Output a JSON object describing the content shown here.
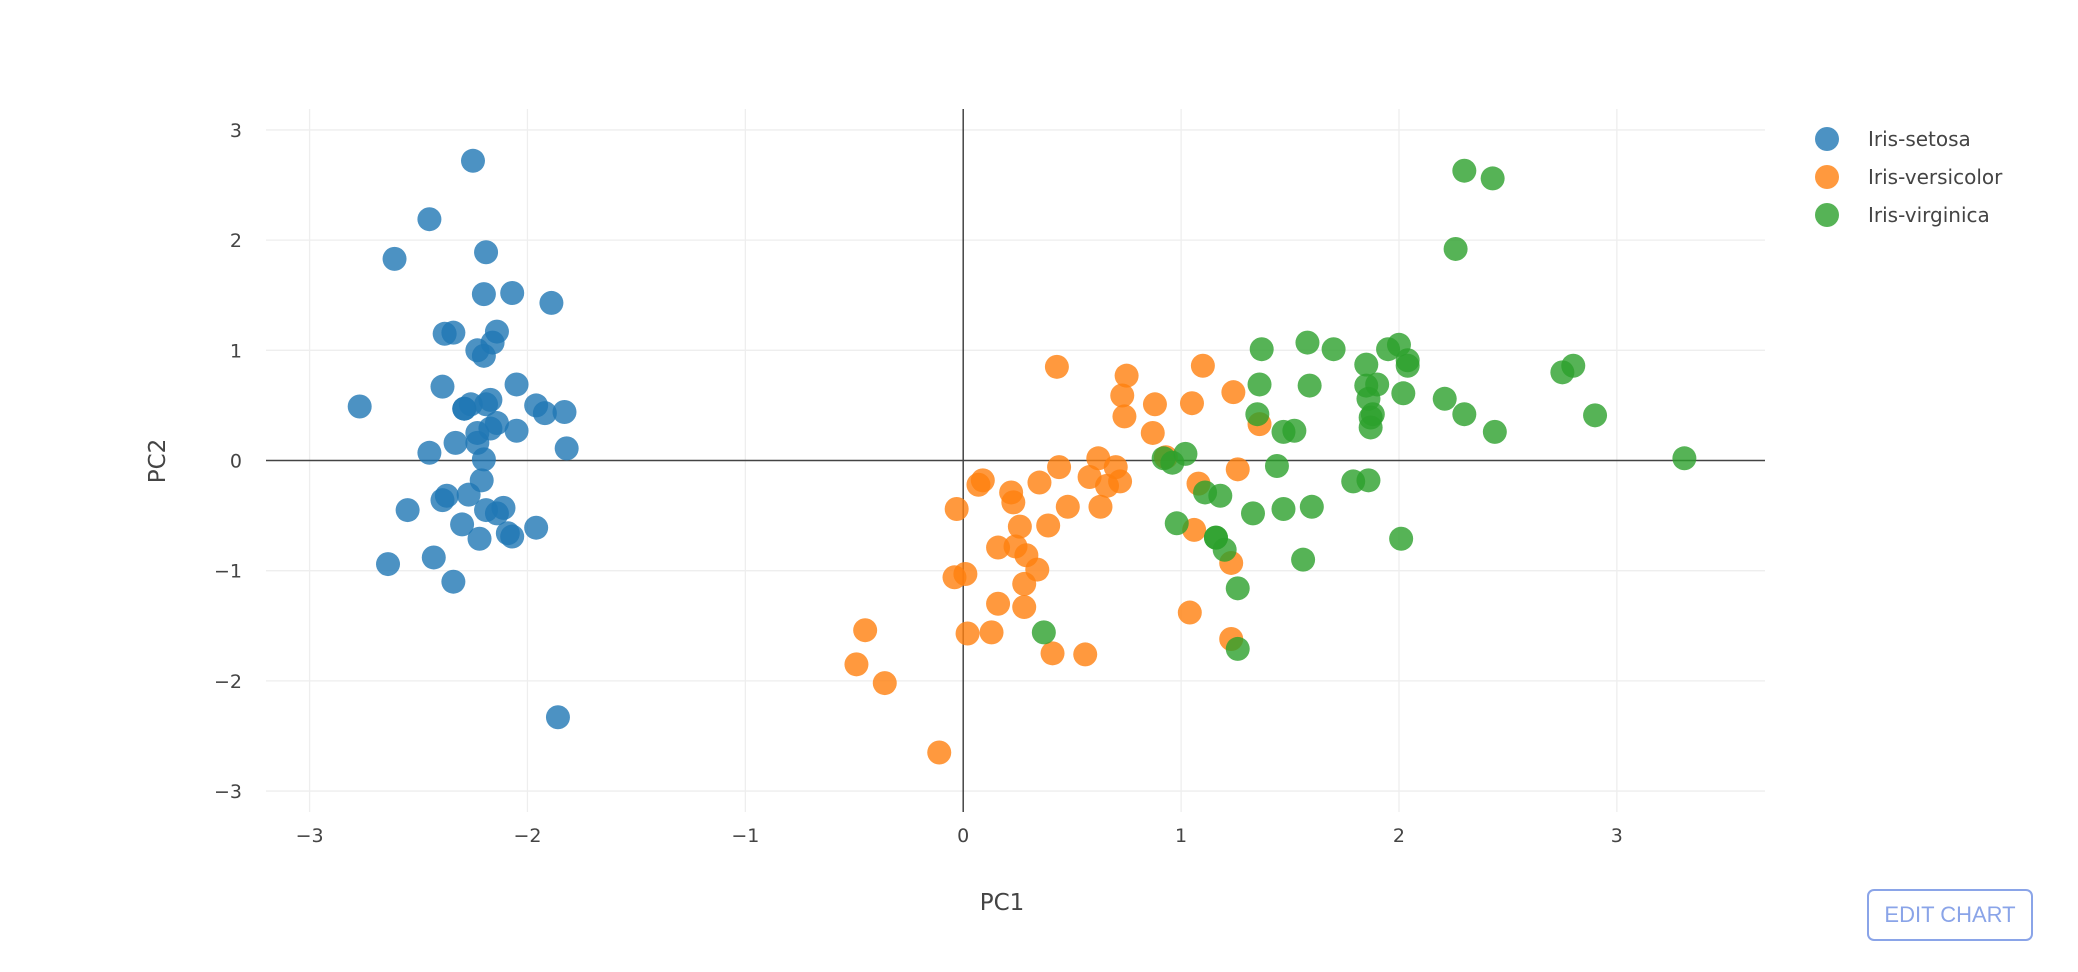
{
  "chart_data": {
    "type": "scatter",
    "title": "",
    "xlabel": "PC1",
    "ylabel": "PC2",
    "xlim": [
      -3.2,
      3.68
    ],
    "ylim": [
      -3.19,
      3.19
    ],
    "xticks": [
      -3,
      -2,
      -1,
      0,
      1,
      2,
      3
    ],
    "yticks": [
      -3,
      -2,
      -1,
      0,
      1,
      2,
      3
    ],
    "xtick_labels": [
      "−3",
      "−2",
      "−1",
      "0",
      "1",
      "2",
      "3"
    ],
    "ytick_labels": [
      "−3",
      "−2",
      "−1",
      "0",
      "1",
      "2",
      "3"
    ],
    "grid": true,
    "legend_position": "top-right",
    "series": [
      {
        "name": "Iris-setosa",
        "color": "#1f77b4",
        "points": [
          [
            -2.26,
            0.51
          ],
          [
            -2.09,
            -0.66
          ],
          [
            -2.37,
            -0.32
          ],
          [
            -2.3,
            -0.58
          ],
          [
            -2.39,
            0.67
          ],
          [
            -2.07,
            1.52
          ],
          [
            -2.45,
            0.07
          ],
          [
            -2.23,
            0.25
          ],
          [
            -2.34,
            -1.1
          ],
          [
            -2.19,
            -0.45
          ],
          [
            -2.16,
            1.07
          ],
          [
            -2.33,
            0.16
          ],
          [
            -2.22,
            -0.71
          ],
          [
            -2.64,
            -0.94
          ],
          [
            -2.19,
            1.89
          ],
          [
            -2.25,
            2.72
          ],
          [
            -2.2,
            1.51
          ],
          [
            -2.19,
            0.51
          ],
          [
            -1.89,
            1.43
          ],
          [
            -2.34,
            1.16
          ],
          [
            -1.92,
            0.43
          ],
          [
            -2.2,
            0.95
          ],
          [
            -2.77,
            0.49
          ],
          [
            -1.82,
            0.11
          ],
          [
            -2.23,
            0.16
          ],
          [
            -1.96,
            -0.61
          ],
          [
            -2.05,
            0.27
          ],
          [
            -2.17,
            0.55
          ],
          [
            -2.14,
            0.34
          ],
          [
            -2.27,
            -0.31
          ],
          [
            -2.14,
            -0.48
          ],
          [
            -1.83,
            0.44
          ],
          [
            -2.61,
            1.83
          ],
          [
            -2.45,
            2.19
          ],
          [
            -2.11,
            -0.43
          ],
          [
            -2.21,
            -0.18
          ],
          [
            -2.05,
            0.69
          ],
          [
            -2.29,
            0.47
          ],
          [
            -2.43,
            -0.88
          ],
          [
            -2.17,
            0.29
          ],
          [
            -2.29,
            0.47
          ],
          [
            -1.86,
            -2.33
          ],
          [
            -2.55,
            -0.45
          ],
          [
            -1.96,
            0.5
          ],
          [
            -2.14,
            1.17
          ],
          [
            -2.07,
            -0.69
          ],
          [
            -2.38,
            1.15
          ],
          [
            -2.39,
            -0.36
          ],
          [
            -2.23,
            1.0
          ],
          [
            -2.2,
            0.01
          ]
        ]
      },
      {
        "name": "Iris-versicolor",
        "color": "#ff7f0e",
        "points": [
          [
            1.1,
            0.86
          ],
          [
            0.73,
            0.59
          ],
          [
            1.24,
            0.62
          ],
          [
            0.41,
            -1.75
          ],
          [
            1.08,
            -0.21
          ],
          [
            0.39,
            -0.59
          ],
          [
            0.75,
            0.77
          ],
          [
            -0.49,
            -1.85
          ],
          [
            0.93,
            0.03
          ],
          [
            0.01,
            -1.03
          ],
          [
            -0.11,
            -2.65
          ],
          [
            0.44,
            -0.06
          ],
          [
            0.56,
            -1.76
          ],
          [
            0.72,
            -0.19
          ],
          [
            -0.03,
            -0.44
          ],
          [
            0.88,
            0.51
          ],
          [
            0.35,
            -0.2
          ],
          [
            0.16,
            -0.79
          ],
          [
            1.23,
            -1.62
          ],
          [
            0.16,
            -1.3
          ],
          [
            0.74,
            0.4
          ],
          [
            0.48,
            -0.42
          ],
          [
            1.23,
            -0.93
          ],
          [
            0.63,
            -0.42
          ],
          [
            0.7,
            -0.06
          ],
          [
            0.87,
            0.25
          ],
          [
            1.26,
            -0.08
          ],
          [
            1.36,
            0.33
          ],
          [
            0.66,
            -0.23
          ],
          [
            -0.04,
            -1.06
          ],
          [
            0.13,
            -1.56
          ],
          [
            0.02,
            -1.57
          ],
          [
            0.24,
            -0.78
          ],
          [
            1.06,
            -0.63
          ],
          [
            0.22,
            -0.29
          ],
          [
            0.43,
            0.85
          ],
          [
            1.05,
            0.52
          ],
          [
            1.04,
            -1.38
          ],
          [
            0.07,
            -0.22
          ],
          [
            0.28,
            -1.33
          ],
          [
            0.28,
            -1.12
          ],
          [
            0.62,
            0.02
          ],
          [
            0.34,
            -0.99
          ],
          [
            -0.36,
            -2.02
          ],
          [
            0.29,
            -0.86
          ],
          [
            0.09,
            -0.18
          ],
          [
            0.23,
            -0.38
          ],
          [
            0.58,
            -0.15
          ],
          [
            -0.45,
            -1.54
          ],
          [
            0.26,
            -0.6
          ]
        ]
      },
      {
        "name": "Iris-virginica",
        "color": "#2ca02c",
        "points": [
          [
            1.85,
            0.87
          ],
          [
            1.16,
            -0.7
          ],
          [
            2.21,
            0.56
          ],
          [
            1.44,
            -0.05
          ],
          [
            1.87,
            0.3
          ],
          [
            2.75,
            0.8
          ],
          [
            0.37,
            -1.56
          ],
          [
            2.3,
            0.42
          ],
          [
            2.01,
            -0.71
          ],
          [
            2.26,
            1.92
          ],
          [
            1.36,
            0.69
          ],
          [
            1.6,
            -0.42
          ],
          [
            1.88,
            0.42
          ],
          [
            1.26,
            -1.16
          ],
          [
            1.47,
            -0.44
          ],
          [
            1.59,
            0.68
          ],
          [
            1.47,
            0.26
          ],
          [
            2.43,
            2.56
          ],
          [
            3.31,
            0.02
          ],
          [
            1.26,
            -1.71
          ],
          [
            2.04,
            0.91
          ],
          [
            0.98,
            -0.57
          ],
          [
            2.9,
            0.41
          ],
          [
            1.33,
            -0.48
          ],
          [
            1.7,
            1.01
          ],
          [
            1.95,
            1.01
          ],
          [
            1.18,
            -0.32
          ],
          [
            1.02,
            0.06
          ],
          [
            1.79,
            -0.19
          ],
          [
            1.86,
            0.56
          ],
          [
            2.44,
            0.26
          ],
          [
            2.3,
            2.63
          ],
          [
            1.86,
            -0.18
          ],
          [
            1.11,
            -0.29
          ],
          [
            1.2,
            -0.81
          ],
          [
            2.8,
            0.86
          ],
          [
            1.58,
            1.07
          ],
          [
            1.35,
            0.42
          ],
          [
            0.92,
            0.02
          ],
          [
            1.85,
            0.68
          ],
          [
            2.02,
            0.61
          ],
          [
            1.9,
            0.69
          ],
          [
            1.16,
            -0.7
          ],
          [
            2.04,
            0.86
          ],
          [
            2.0,
            1.05
          ],
          [
            1.87,
            0.39
          ],
          [
            1.56,
            -0.9
          ],
          [
            1.52,
            0.27
          ],
          [
            1.37,
            1.01
          ],
          [
            0.96,
            -0.02
          ]
        ]
      }
    ]
  },
  "ui": {
    "edit_chart_label": "EDIT CHART"
  }
}
